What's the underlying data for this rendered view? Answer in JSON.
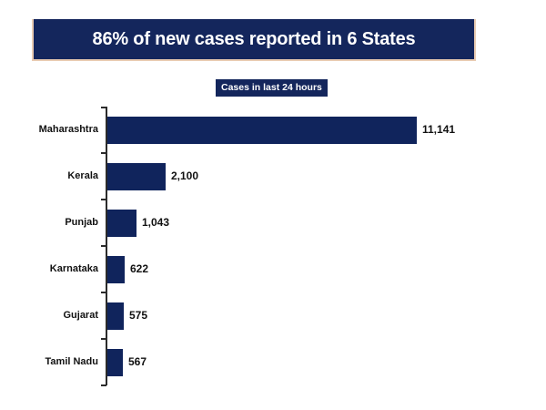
{
  "title": {
    "text": "86% of new cases reported in 6 States"
  },
  "badge": {
    "text": "Cases in last 24 hours"
  },
  "colors": {
    "bar": "#10245C",
    "banner_bg": "#14265C",
    "banner_border": "#E9CBB2",
    "axis": "#2b2b2b",
    "text": "#111111",
    "title_text": "#ffffff"
  },
  "chart_data": {
    "type": "bar",
    "orientation": "horizontal",
    "title": "Cases in last 24 hours",
    "categories": [
      "Maharashtra",
      "Kerala",
      "Punjab",
      "Karnataka",
      "Gujarat",
      "Tamil Nadu"
    ],
    "values": [
      11141,
      2100,
      1043,
      622,
      575,
      567
    ],
    "value_labels": [
      "11,141",
      "2,100",
      "1,043",
      "622",
      "575",
      "567"
    ],
    "xlabel": "",
    "ylabel": "",
    "xlim": [
      0,
      12000
    ],
    "grid": false,
    "legend": false,
    "bar_color": "#10245C",
    "value_labels_position": "end-of-bar"
  }
}
